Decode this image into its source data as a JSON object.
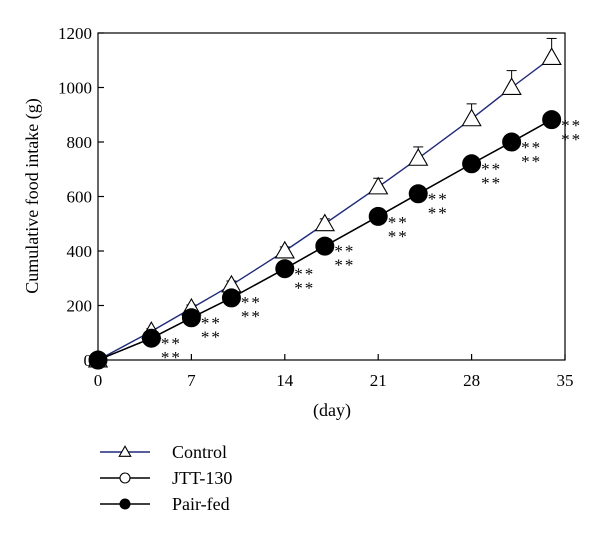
{
  "chart_data": {
    "type": "line",
    "xlabel": "(day)",
    "ylabel": "Cumulative food intake (g)",
    "xlim": [
      0,
      35
    ],
    "ylim": [
      0,
      1200
    ],
    "xticks": [
      0,
      7,
      14,
      21,
      28,
      35
    ],
    "yticks": [
      0,
      200,
      400,
      600,
      800,
      1000,
      1200
    ],
    "grid": false,
    "legend_position": "bottom-left",
    "series": [
      {
        "name": "Control",
        "marker": "open-triangle",
        "color": "#1f2a7a",
        "x": [
          0,
          4,
          7,
          10,
          14,
          17,
          21,
          24,
          28,
          31,
          34
        ],
        "y": [
          0,
          105,
          190,
          275,
          400,
          500,
          635,
          740,
          885,
          1000,
          1110
        ],
        "err": [
          0,
          10,
          12,
          15,
          15,
          18,
          32,
          42,
          55,
          62,
          70
        ]
      },
      {
        "name": "JTT-130",
        "marker": "open-circle",
        "color": "#000000",
        "x": [
          0,
          4,
          7,
          10,
          14,
          17,
          21,
          24,
          28,
          31,
          34
        ],
        "y": [
          0,
          80,
          155,
          228,
          335,
          418,
          527,
          610,
          720,
          800,
          882
        ],
        "err": []
      },
      {
        "name": "Pair-fed",
        "marker": "filled-circle",
        "color": "#000000",
        "x": [
          0,
          4,
          7,
          10,
          14,
          17,
          21,
          24,
          28,
          31,
          34
        ],
        "y": [
          0,
          80,
          155,
          228,
          335,
          418,
          527,
          610,
          720,
          800,
          882
        ],
        "err": []
      }
    ],
    "annotations": {
      "symbol": "**",
      "points": [
        {
          "x": 4,
          "y": 40
        },
        {
          "x": 7,
          "y": 115
        },
        {
          "x": 10,
          "y": 190
        },
        {
          "x": 14,
          "y": 295
        },
        {
          "x": 17,
          "y": 380
        },
        {
          "x": 21,
          "y": 485
        },
        {
          "x": 24,
          "y": 570
        },
        {
          "x": 28,
          "y": 680
        },
        {
          "x": 31,
          "y": 760
        },
        {
          "x": 34,
          "y": 840
        }
      ]
    }
  }
}
